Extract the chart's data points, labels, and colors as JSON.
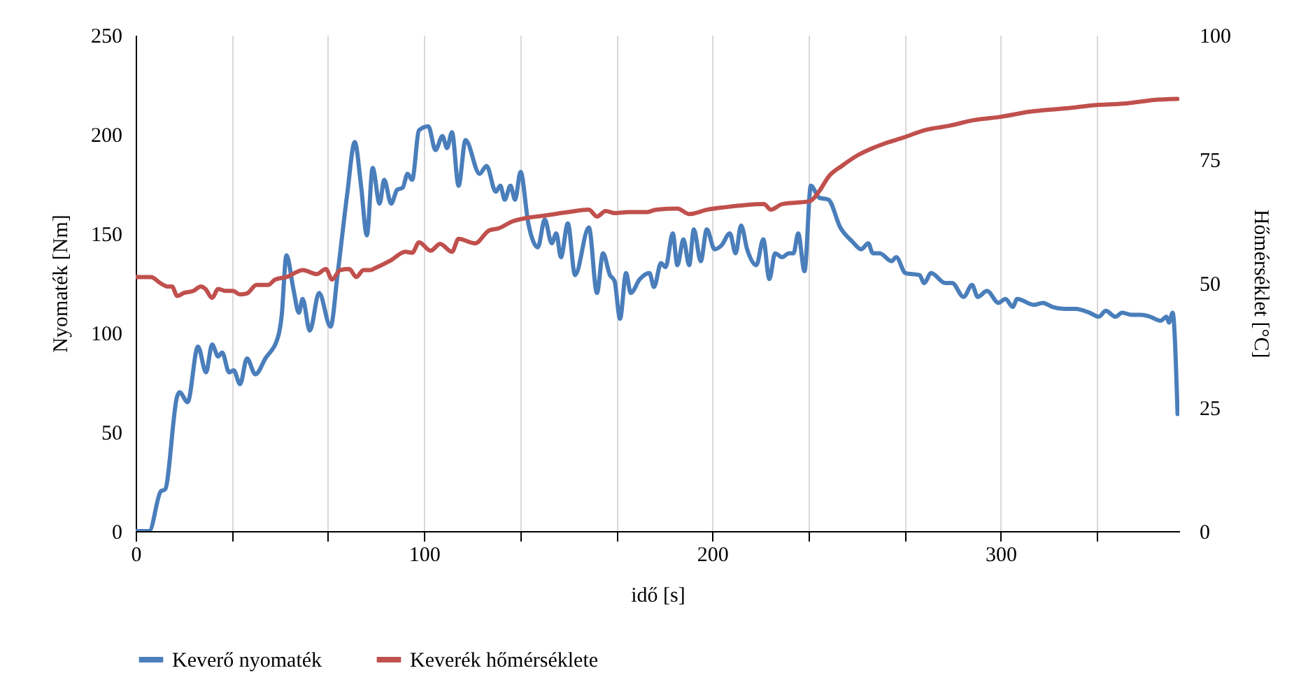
{
  "chart_data": {
    "type": "line",
    "xlabel": "idő [s]",
    "ylabel": "Nyomaték [Nm]",
    "y2label": "Hőmérséklet [°C]",
    "xlim": [
      0,
      362
    ],
    "xticks": [
      0,
      {
        "value": 33.3,
        "label": null
      },
      {
        "value": 66.7,
        "label": null
      },
      100,
      {
        "value": 133.3,
        "label": null
      },
      {
        "value": 166.7,
        "label": null
      },
      200,
      {
        "value": 233.3,
        "label": null
      },
      {
        "value": 266.7,
        "label": null
      },
      300,
      {
        "value": 333.3,
        "label": null
      }
    ],
    "ylim": [
      0,
      250
    ],
    "yticks": [
      0,
      50,
      100,
      150,
      200,
      250
    ],
    "y2lim": [
      0,
      100
    ],
    "y2ticks": [
      0,
      25,
      50,
      75,
      100
    ],
    "grid": "x",
    "legend": "bottom",
    "line_style": "solid",
    "marker": "none",
    "series": [
      {
        "name": "Keverő nyomaték",
        "color": "#4a7ebb",
        "x": [
          0,
          4.7,
          8.7,
          10.2,
          14.4,
          15.2,
          18,
          21.6,
          24.4,
          26.5,
          28.6,
          30,
          32.4,
          34,
          36.2,
          38.6,
          41.5,
          45,
          49.4,
          50.6,
          52.3,
          54.7,
          56.6,
          57.9,
          60.4,
          63.6,
          67.6,
          70,
          73.3,
          76,
          78.1,
          80.2,
          82.2,
          84.6,
          86.2,
          88.6,
          90.7,
          92.6,
          94.3,
          95.9,
          98.3,
          101.5,
          104,
          106.4,
          108,
          109.7,
          112,
          114.4,
          119.3,
          121.7,
          124.9,
          126.5,
          128,
          130,
          131.6,
          133.5,
          136.2,
          139.5,
          141.9,
          144.3,
          145.9,
          147.5,
          149.9,
          152.4,
          157.2,
          160,
          162.1,
          164.5,
          166.1,
          168,
          170.1,
          171.7,
          174.9,
          178.2,
          179.8,
          182.2,
          183.8,
          186.3,
          187.9,
          190,
          192,
          193.6,
          196,
          198.1,
          200.8,
          203.2,
          206.1,
          208.1,
          210,
          212.1,
          215.3,
          217.7,
          219.8,
          221.8,
          224.2,
          226.6,
          228.2,
          229.8,
          232,
          234.2,
          237.1,
          240.3,
          244.4,
          248.5,
          251.7,
          254.1,
          255.7,
          258.1,
          262.2,
          263.8,
          267,
          271.9,
          273.5,
          275.9,
          280.8,
          283.2,
          287.2,
          290.1,
          292.1,
          295.3,
          299.3,
          301.7,
          304.2,
          305.8,
          311.5,
          314.7,
          317.9,
          322,
          326,
          330.9,
          334.1,
          336.5,
          339.8,
          342.2,
          345.4,
          348.7,
          351.9,
          355.5,
          357.6,
          358.4,
          359.7,
          361.4
        ],
        "values": [
          0,
          0,
          20,
          21,
          68,
          70,
          65,
          93,
          80,
          94,
          88,
          90,
          80,
          81,
          74,
          87,
          79,
          87,
          98,
          108,
          139,
          122,
          110,
          117,
          101,
          120,
          103,
          129,
          169,
          196,
          175,
          149,
          183,
          165,
          177,
          165,
          172,
          173,
          180,
          177,
          202,
          204,
          192,
          199,
          193,
          201,
          174,
          197,
          180,
          184,
          171,
          174,
          167,
          174,
          167,
          181,
          155,
          143,
          157,
          145,
          150,
          138,
          155,
          129,
          153,
          120,
          140,
          129,
          126,
          107,
          130,
          120,
          127,
          130,
          123,
          135,
          133,
          150,
          134,
          147,
          134,
          152,
          136,
          152,
          142,
          144,
          150,
          140,
          154,
          142,
          134,
          147,
          127,
          140,
          138,
          140,
          140,
          150,
          131,
          174,
          168,
          167,
          153,
          146,
          142,
          145,
          140,
          140,
          136,
          138,
          130,
          129,
          125,
          130,
          125,
          125,
          118,
          124,
          118,
          121,
          115,
          117,
          113,
          117,
          114,
          115,
          113,
          112,
          112,
          110,
          108,
          111,
          108,
          110,
          109,
          109,
          108,
          106,
          108,
          105,
          110,
          59
        ]
      },
      {
        "name": "Keverék hőmérséklete",
        "color": "#c0504d",
        "axis": "y2",
        "x": [
          0,
          5.3,
          8.5,
          11,
          12.6,
          14.4,
          16.8,
          20,
          22.6,
          24.2,
          26.5,
          28.6,
          31.3,
          33.7,
          36.2,
          38.6,
          41.9,
          45.9,
          48.4,
          52.3,
          58,
          62.8,
          66,
          68.1,
          70.9,
          74.1,
          76.5,
          79,
          81.4,
          83,
          88.6,
          93.5,
          95.9,
          98.3,
          102.3,
          105.6,
          109.7,
          112,
          117.7,
          122.6,
          125.8,
          130.6,
          135.5,
          141.9,
          150,
          157.2,
          160,
          163,
          166.1,
          171,
          177.4,
          180.6,
          187.9,
          192,
          198.4,
          204.9,
          211.4,
          217.9,
          220.3,
          224.2,
          229,
          233.9,
          237.1,
          240.3,
          245.2,
          250,
          254.9,
          259.7,
          266.2,
          274.3,
          282.3,
          290.4,
          300.1,
          309.8,
          322.7,
          334,
          343.7,
          353.4,
          361.4
        ],
        "values": [
          51.2,
          51.2,
          50,
          49.3,
          49.3,
          47.4,
          48,
          48.4,
          49.3,
          48.8,
          47,
          48.8,
          48.4,
          48.4,
          47.7,
          47.9,
          49.6,
          49.6,
          50.7,
          51.2,
          52.6,
          51.8,
          52.8,
          50.7,
          52.6,
          52.8,
          51.2,
          52.6,
          52.6,
          53,
          54.6,
          56.3,
          56.1,
          58.2,
          56.5,
          57.9,
          56.3,
          58.9,
          58,
          60.6,
          61,
          62.4,
          63.1,
          63.6,
          64.3,
          64.8,
          63.4,
          64.5,
          64.1,
          64.3,
          64.3,
          64.8,
          65,
          63.9,
          64.8,
          65.3,
          65.7,
          65.9,
          64.8,
          65.9,
          66.2,
          66.5,
          68.5,
          71.4,
          73.7,
          75.6,
          77,
          78.1,
          79.3,
          80.9,
          81.7,
          82.8,
          83.5,
          84.5,
          85.2,
          85.9,
          86.2,
          86.9,
          87.1
        ]
      }
    ]
  }
}
